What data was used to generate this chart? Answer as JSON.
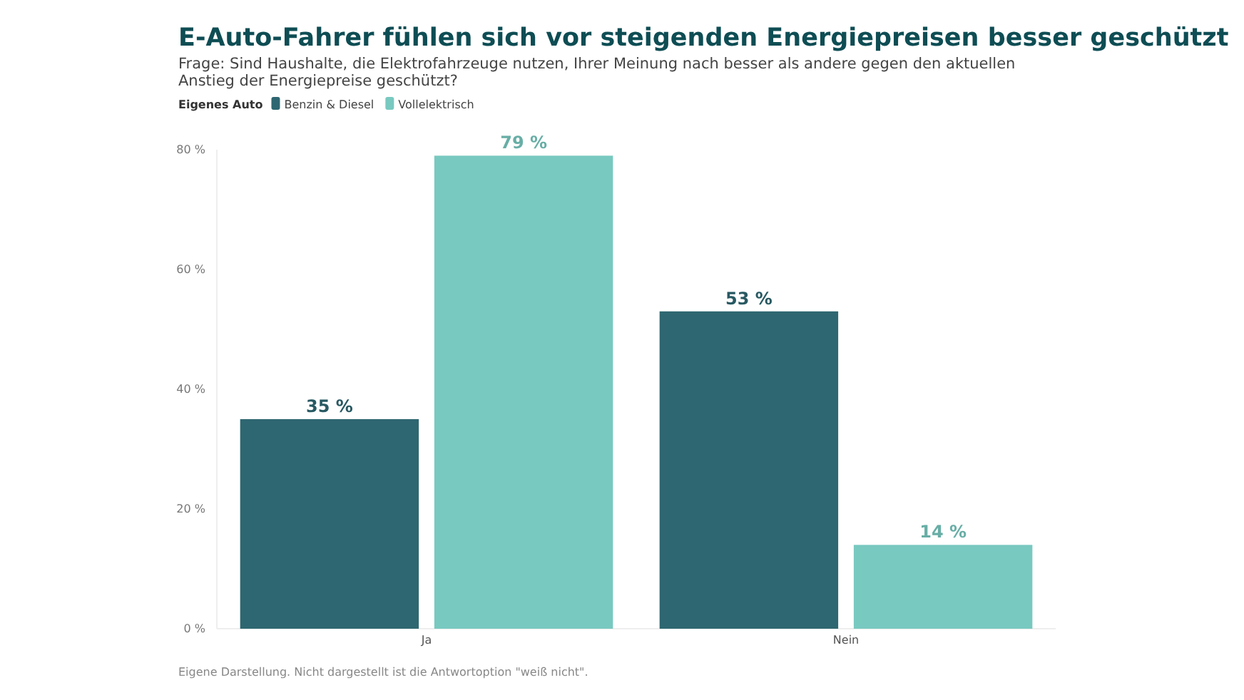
{
  "chart_data": {
    "type": "bar",
    "title": "E-Auto-Fahrer fühlen sich vor steigenden Energiepreisen besser geschützt",
    "subtitle": "Frage: Sind Haushalte, die Elektrofahrzeuge nutzen, Ihrer Meinung nach besser als andere gegen den aktuellen Anstieg der Energiepreise geschützt?",
    "legend_title": "Eigenes Auto",
    "categories": [
      "Ja",
      "Nein"
    ],
    "series": [
      {
        "name": "Benzin & Diesel",
        "color": "#2e6771",
        "values": [
          35,
          53
        ],
        "value_labels": [
          "35 %",
          "53 %"
        ]
      },
      {
        "name": "Vollelektrisch",
        "color": "#78c9c0",
        "values": [
          79,
          14
        ],
        "value_labels": [
          "79 %",
          "14 %"
        ]
      }
    ],
    "ylim": [
      0,
      80
    ],
    "yticks": [
      {
        "value": 0,
        "label": "0 %"
      },
      {
        "value": 20,
        "label": "20 %"
      },
      {
        "value": 40,
        "label": "40 %"
      },
      {
        "value": 60,
        "label": "60 %"
      },
      {
        "value": 80,
        "label": "80 %"
      }
    ],
    "grid": false,
    "legend": "top left",
    "annotations": [
      "Eigene Darstellung. Nicht dargestellt ist die Antwortoption \"weiß nicht\"."
    ]
  }
}
